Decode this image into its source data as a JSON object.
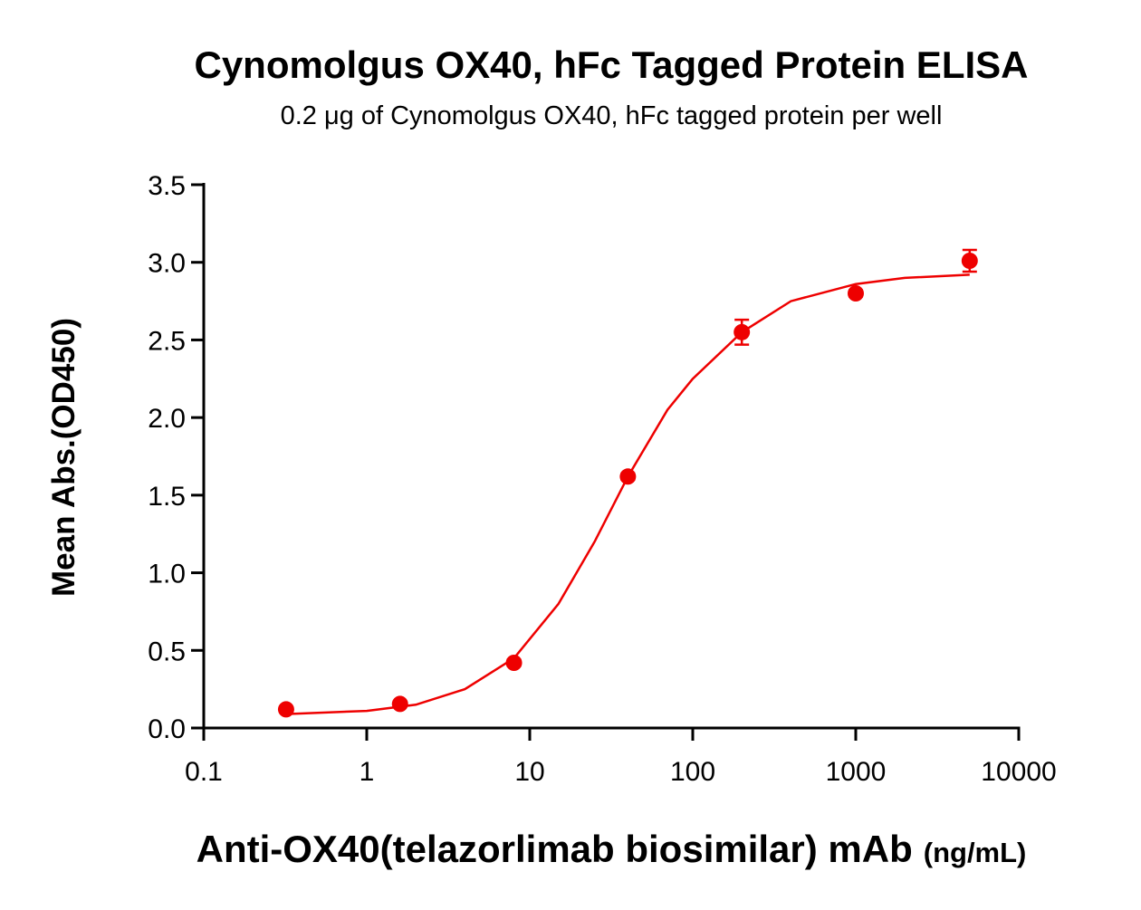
{
  "chart_data": {
    "type": "scatter",
    "title": "Cynomolgus OX40, hFc Tagged Protein ELISA",
    "subtitle": "0.2 μg of Cynomolgus OX40, hFc tagged protein per well",
    "x_label": "Anti-OX40(telazorlimab biosimilar) mAb",
    "x_label_unit": "(ng/mL)",
    "y_label": "Mean Abs.(OD450)",
    "x_scale": "log",
    "color": "#ee0000",
    "x": [
      0.32,
      1.6,
      8,
      40,
      200,
      1000,
      5000
    ],
    "values": [
      0.12,
      0.155,
      0.42,
      1.62,
      2.55,
      2.8,
      3.01
    ],
    "errors": [
      0.015,
      0.015,
      0.02,
      0.02,
      0.08,
      0.02,
      0.07
    ],
    "fit": {
      "x": [
        0.32,
        1,
        2,
        4,
        8,
        15,
        25,
        40,
        70,
        100,
        200,
        400,
        1000,
        2000,
        5000
      ],
      "values": [
        0.09,
        0.11,
        0.15,
        0.25,
        0.45,
        0.8,
        1.2,
        1.62,
        2.05,
        2.25,
        2.55,
        2.75,
        2.86,
        2.9,
        2.92
      ]
    },
    "xlim": [
      0.1,
      10000
    ],
    "xticks": [
      0.1,
      1,
      10,
      100,
      1000,
      10000
    ],
    "ylim": [
      0,
      3.5
    ],
    "yticks": [
      {
        "value": 0,
        "label": "0.0"
      },
      0.5,
      {
        "value": 1,
        "label": "1.0"
      },
      1.5,
      {
        "value": 2,
        "label": "2.0"
      },
      2.5,
      {
        "value": 3,
        "label": "3.0"
      },
      3.5
    ]
  }
}
